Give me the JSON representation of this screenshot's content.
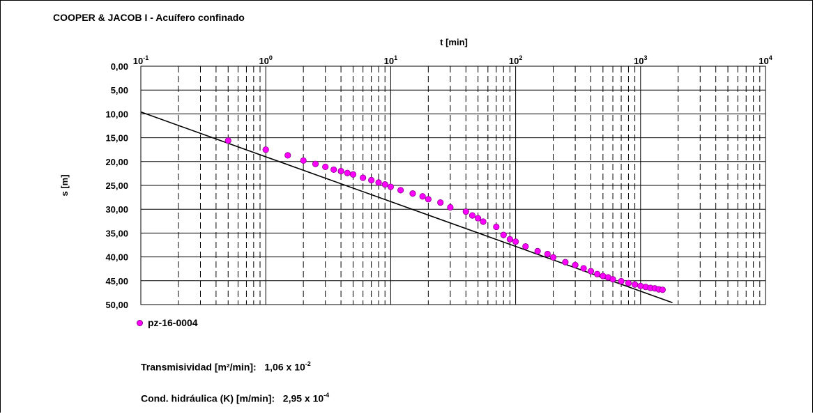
{
  "title": "COOPER & JACOB I - Acuífero confinado",
  "chart_data": {
    "type": "scatter",
    "title": "COOPER & JACOB I - Acuífero confinado",
    "xlabel": "t [min]",
    "ylabel": "s [m]",
    "x_scale": "log",
    "xlim": [
      0.1,
      10000
    ],
    "ylim": [
      0,
      50
    ],
    "y_inverted": true,
    "grid": true,
    "x_tick_labels": [
      {
        "base": "10",
        "exp": "-1"
      },
      {
        "base": "10",
        "exp": "0"
      },
      {
        "base": "10",
        "exp": "1"
      },
      {
        "base": "10",
        "exp": "2"
      },
      {
        "base": "10",
        "exp": "3"
      },
      {
        "base": "10",
        "exp": "4"
      }
    ],
    "y_tick_labels": [
      "0,00",
      "5,00",
      "10,00",
      "15,00",
      "20,00",
      "25,00",
      "30,00",
      "35,00",
      "40,00",
      "45,00",
      "50,00"
    ],
    "legend_position": "bottom-left",
    "series": [
      {
        "name": "pz-16-0004",
        "color": "#ff00ff",
        "x": [
          0.5,
          1.0,
          1.5,
          2.0,
          2.5,
          3.0,
          3.5,
          4.0,
          4.5,
          5.0,
          6.0,
          7.0,
          8.0,
          9.0,
          10.0,
          12.0,
          15.0,
          18.0,
          20.0,
          25.0,
          30.0,
          40.0,
          45.0,
          50.0,
          55.0,
          70.0,
          80.0,
          90.0,
          100.0,
          120.0,
          150.0,
          180.0,
          200.0,
          250.0,
          300.0,
          350.0,
          400.0,
          450.0,
          500.0,
          550.0,
          600.0,
          700.0,
          800.0,
          900.0,
          1000.0,
          1100.0,
          1200.0,
          1300.0,
          1400.0,
          1500.0
        ],
        "y": [
          15.6,
          17.5,
          18.7,
          19.8,
          20.5,
          21.1,
          21.7,
          22.0,
          22.4,
          22.7,
          23.4,
          23.9,
          24.4,
          24.8,
          25.3,
          26.0,
          26.7,
          27.3,
          27.9,
          28.6,
          29.6,
          30.5,
          31.3,
          31.9,
          32.6,
          33.7,
          35.4,
          36.3,
          36.8,
          37.8,
          38.8,
          39.4,
          40.1,
          41.1,
          41.7,
          42.4,
          43.0,
          43.6,
          44.0,
          44.3,
          44.7,
          45.1,
          45.5,
          45.8,
          46.1,
          46.3,
          46.5,
          46.6,
          46.8,
          46.9
        ]
      },
      {
        "name": "",
        "type": "line",
        "color": "#000000",
        "x": [
          0.1,
          1800
        ],
        "y": [
          9.6,
          49.6
        ]
      }
    ]
  },
  "results": {
    "transmisividad": {
      "label": "Transmisividad [m²/min]:",
      "mantissa": "1,06 x 10",
      "exp": "-2"
    },
    "conductividad": {
      "label": "Cond. hidráulica (K) [m/min]:",
      "mantissa": "2,95 x 10",
      "exp": "-4"
    }
  }
}
